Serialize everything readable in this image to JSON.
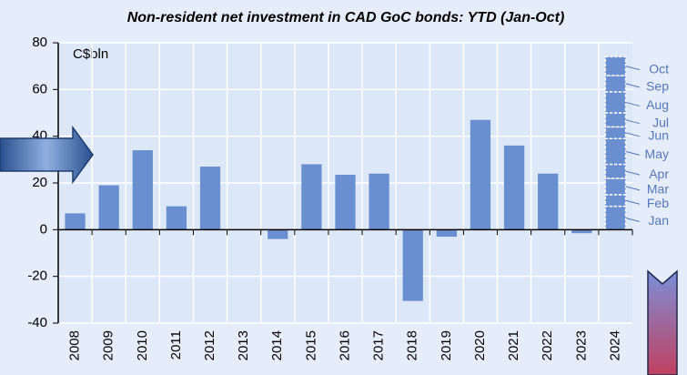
{
  "chart_data": {
    "type": "bar",
    "title": "Non-resident net investment in CAD GoC bonds: YTD (Jan-Oct)",
    "unit_label": "C$bln",
    "categories": [
      "2008",
      "2009",
      "2010",
      "2011",
      "2012",
      "2013",
      "2014",
      "2015",
      "2016",
      "2017",
      "2018",
      "2019",
      "2020",
      "2021",
      "2022",
      "2023",
      "2024"
    ],
    "values": [
      7,
      19,
      34,
      10,
      27,
      0,
      -4,
      28,
      23.5,
      24,
      -30.5,
      -3,
      47,
      36,
      24,
      -1.5,
      null
    ],
    "color": "#6a8fd0",
    "stack_category": "2024",
    "stack_series": [
      {
        "name": "Jan",
        "value": 10
      },
      {
        "name": "Feb",
        "value": 5
      },
      {
        "name": "Mar",
        "value": 7
      },
      {
        "name": "Apr",
        "value": 6
      },
      {
        "name": "May",
        "value": 11
      },
      {
        "name": "Jun",
        "value": 5
      },
      {
        "name": "Jul",
        "value": 6
      },
      {
        "name": "Aug",
        "value": 9
      },
      {
        "name": "Sep",
        "value": 7
      },
      {
        "name": "Oct",
        "value": 8
      }
    ],
    "ylim": [
      -40,
      80
    ],
    "yticks": [
      -40,
      -20,
      0,
      20,
      40,
      60,
      80
    ],
    "grid": true
  }
}
